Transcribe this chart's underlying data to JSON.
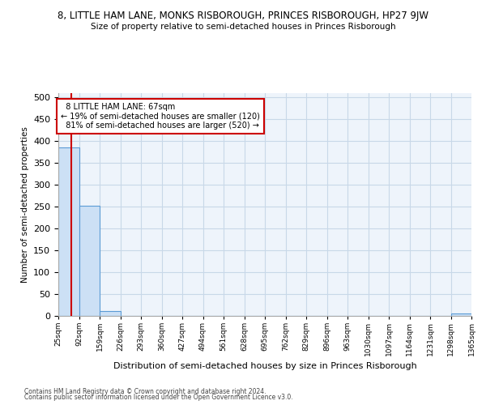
{
  "title": "8, LITTLE HAM LANE, MONKS RISBOROUGH, PRINCES RISBOROUGH, HP27 9JW",
  "subtitle": "Size of property relative to semi-detached houses in Princes Risborough",
  "xlabel": "Distribution of semi-detached houses by size in Princes Risborough",
  "ylabel": "Number of semi-detached properties",
  "footer1": "Contains HM Land Registry data © Crown copyright and database right 2024.",
  "footer2": "Contains public sector information licensed under the Open Government Licence v3.0.",
  "bin_edges": [
    25,
    92,
    159,
    226,
    293,
    360,
    427,
    494,
    561,
    628,
    695,
    762,
    829,
    896,
    963,
    1030,
    1097,
    1164,
    1231,
    1298,
    1365
  ],
  "bar_heights": [
    385,
    252,
    11,
    0,
    0,
    0,
    0,
    0,
    0,
    0,
    0,
    0,
    0,
    0,
    0,
    0,
    0,
    0,
    0,
    5,
    0
  ],
  "bar_color": "#cce0f5",
  "bar_edge_color": "#5b9bd5",
  "property_size": 67,
  "property_label": "8 LITTLE HAM LANE: 67sqm",
  "pct_smaller": 19,
  "pct_smaller_count": 120,
  "pct_larger": 81,
  "pct_larger_count": 520,
  "annotation_color": "#cc0000",
  "vline_color": "#cc0000",
  "ylim": [
    0,
    510
  ],
  "yticks": [
    0,
    50,
    100,
    150,
    200,
    250,
    300,
    350,
    400,
    450,
    500
  ],
  "grid_color": "#c8d8e8",
  "bg_color": "#eef4fb"
}
